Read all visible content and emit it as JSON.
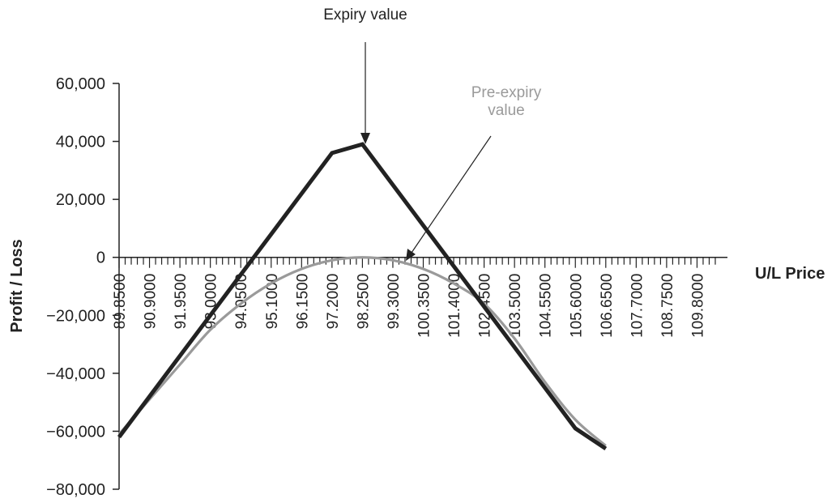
{
  "chart_data": {
    "type": "line",
    "xlabel": "U/L Price",
    "ylabel": "Profit / Loss",
    "x": [
      89.85,
      90.9,
      91.95,
      93.0,
      94.05,
      95.1,
      96.15,
      97.2,
      98.25,
      99.3,
      100.35,
      101.4,
      102.45,
      103.5,
      104.55,
      105.6,
      106.65
    ],
    "x_tick_labels": [
      "89.8500",
      "90.9000",
      "91.9500",
      "93.0000",
      "94.0500",
      "95.1000",
      "96.1500",
      "97.2000",
      "98.2500",
      "99.3000",
      "100.3500",
      "101.4000",
      "102.4500",
      "103.5000",
      "104.5500",
      "105.6000",
      "106.6500",
      "107.7000",
      "108.7500",
      "109.8000"
    ],
    "xlim": [
      89.85,
      110.3
    ],
    "y_tick_labels": [
      "60,000",
      "40,000",
      "20,000",
      "0",
      "−20,000",
      "−40,000",
      "−60,000",
      "−80,000"
    ],
    "y_ticks": [
      60000,
      40000,
      20000,
      0,
      -20000,
      -40000,
      -60000,
      -80000
    ],
    "ylim": [
      -80000,
      60000
    ],
    "series": [
      {
        "name": "Expiry value",
        "color": "#222222",
        "values": [
          -62000,
          -48000,
          -34000,
          -20000,
          -6000,
          8000,
          22000,
          36000,
          39000,
          25000,
          11000,
          -3000,
          -17000,
          -31000,
          -45000,
          -59000,
          -66000
        ]
      },
      {
        "name": "Pre-expiry value",
        "color": "#9a9a9a",
        "values": [
          -61000,
          -49000,
          -37000,
          -25000,
          -16000,
          -9000,
          -4000,
          -1000,
          0,
          -1000,
          -4000,
          -9000,
          -16000,
          -28000,
          -43000,
          -56000,
          -65000
        ]
      }
    ],
    "annotations": [
      {
        "text_lines": [
          "Expiry value"
        ],
        "color": "#222222"
      },
      {
        "text_lines": [
          "Pre-expiry",
          "value"
        ],
        "color": "#9a9a9a"
      }
    ],
    "grid": false,
    "legend": "none"
  }
}
